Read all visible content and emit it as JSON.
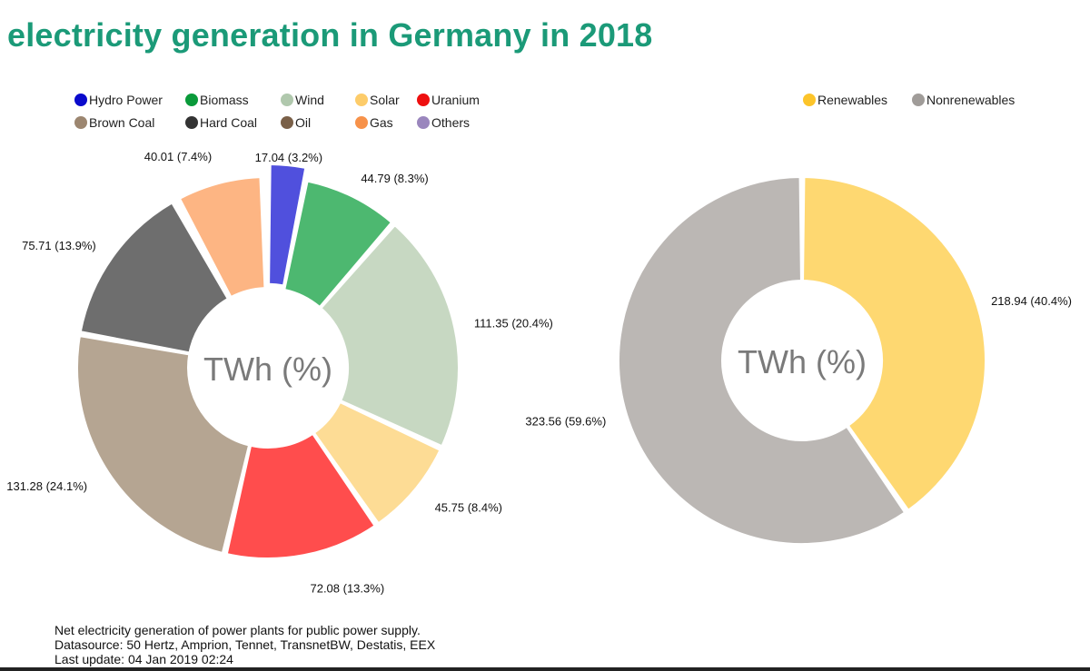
{
  "title": "electricity generation in Germany in 2018",
  "chart_data": [
    {
      "type": "pie",
      "variant": "donut",
      "center_label": "TWh (%)",
      "legend_position": "top",
      "slices": [
        {
          "name": "Hydro Power",
          "value": 17.04,
          "label": "17.04 (3.2%)",
          "color": "#5050dd",
          "legend_color": "#0a0acc"
        },
        {
          "name": "Biomass",
          "value": 44.79,
          "label": "44.79 (8.3%)",
          "color": "#4db870",
          "legend_color": "#0a9a3a"
        },
        {
          "name": "Wind",
          "value": 111.35,
          "label": "111.35 (20.4%)",
          "color": "#c7d8c2",
          "legend_color": "#b0c8ad"
        },
        {
          "name": "Solar",
          "value": 45.75,
          "label": "45.75 (8.4%)",
          "color": "#fddc95",
          "legend_color": "#fdcc6a"
        },
        {
          "name": "Uranium",
          "value": 72.08,
          "label": "72.08 (13.3%)",
          "color": "#ff4d4d",
          "legend_color": "#ee0f0f"
        },
        {
          "name": "Brown Coal",
          "value": 131.28,
          "label": "131.28 (24.1%)",
          "color": "#b5a592",
          "legend_color": "#9c8670"
        },
        {
          "name": "Hard Coal",
          "value": 75.71,
          "label": "75.71 (13.9%)",
          "color": "#6e6e6e",
          "legend_color": "#333333"
        },
        {
          "name": "Oil",
          "value": 2.0,
          "label": "",
          "color": "#9a8a78",
          "legend_color": "#7a6048"
        },
        {
          "name": "Gas",
          "value": 40.01,
          "label": "40.01 (7.4%)",
          "color": "#fdb583",
          "legend_color": "#f7924a"
        },
        {
          "name": "Others",
          "value": 2.49,
          "label": "",
          "color": "#b3a6cc",
          "legend_color": "#9a86bd"
        }
      ]
    },
    {
      "type": "pie",
      "variant": "donut",
      "center_label": "TWh (%)",
      "legend_position": "top",
      "slices": [
        {
          "name": "Renewables",
          "value": 218.94,
          "label": "218.94 (40.4%)",
          "color": "#fed871",
          "legend_color": "#fcc42a"
        },
        {
          "name": "Nonrenewables",
          "value": 323.56,
          "label": "323.56 (59.6%)",
          "color": "#bbb7b4",
          "legend_color": "#a09c99"
        }
      ]
    }
  ],
  "footer": {
    "line1": "Net electricity generation of power plants for public power supply.",
    "line2": "Datasource: 50 Hertz, Amprion, Tennet, TransnetBW, Destatis, EEX",
    "line3": "Last update: 04 Jan 2019 02:24"
  }
}
